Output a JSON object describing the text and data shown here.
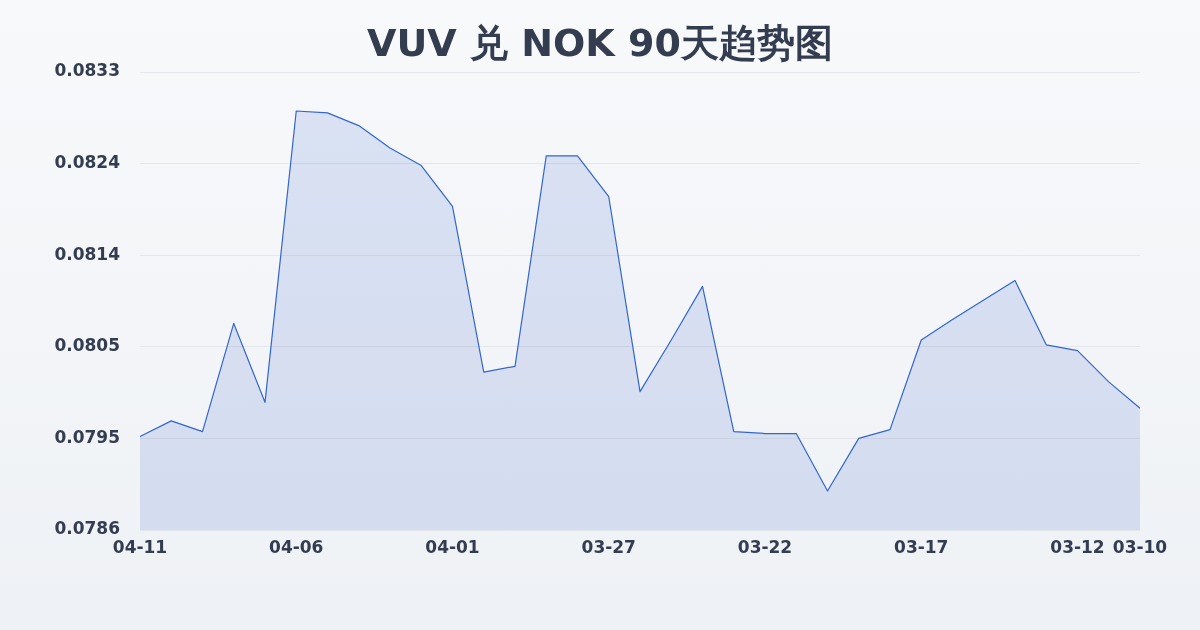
{
  "chart_data": {
    "type": "area",
    "title": "VUV 兑 NOK 90天趋势图",
    "categories": [
      "04-11",
      null,
      null,
      null,
      null,
      "04-06",
      null,
      null,
      null,
      null,
      "04-01",
      null,
      null,
      null,
      null,
      "03-27",
      null,
      null,
      null,
      null,
      "03-22",
      null,
      null,
      null,
      null,
      "03-17",
      null,
      null,
      null,
      null,
      "03-12",
      null,
      "03-10"
    ],
    "series": [
      {
        "color": "#3366cc",
        "values": [
          0.07956,
          0.07972,
          0.07961,
          0.08072,
          0.07991,
          0.0829,
          0.08288,
          0.08275,
          0.08252,
          0.08234,
          0.08192,
          0.08022,
          0.08028,
          0.08244,
          0.08244,
          0.08202,
          0.08002,
          0.08055,
          0.0811,
          0.07961,
          0.07959,
          0.07959,
          0.079,
          0.07954,
          0.07963,
          0.08055,
          0.08076,
          0.08096,
          0.08116,
          0.0805,
          0.08044,
          0.08012,
          0.07985
        ]
      }
    ],
    "ylim": [
      0.0786,
      0.0833
    ],
    "yticks": [
      0.0786,
      {
        "value": 0.07954,
        "label": "0.0795"
      },
      {
        "value": 0.08048,
        "label": "0.0805"
      },
      {
        "value": 0.08142,
        "label": "0.0814"
      },
      {
        "value": 0.08236,
        "label": "0.0824"
      },
      0.0833
    ],
    "grid": "y",
    "legend": false,
    "marker": "none",
    "line_style": "solid"
  }
}
